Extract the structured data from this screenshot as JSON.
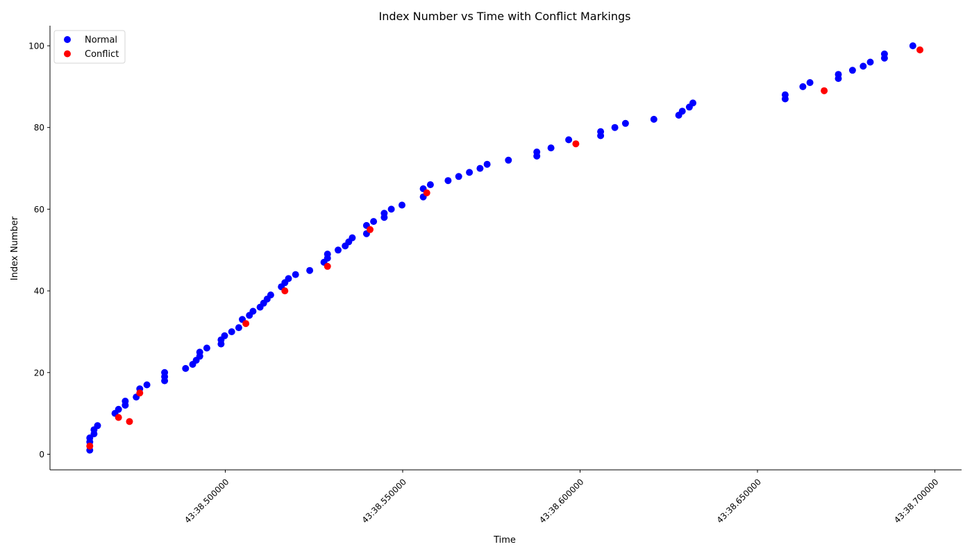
{
  "chart_data": {
    "type": "scatter",
    "title": "Index Number vs Time with Conflict Markings",
    "xlabel": "Time",
    "ylabel": "Index Number",
    "x_unit": "seconds within 43:38 (mm:ss)",
    "xlim": [
      38.4809,
      38.7081
    ],
    "ylim": [
      -4,
      105
    ],
    "xticks": [
      {
        "value": 38.5,
        "label": "43:38.500000"
      },
      {
        "value": 38.55,
        "label": "43:38.550000"
      },
      {
        "value": 38.6,
        "label": "43:38.600000"
      },
      {
        "value": 38.65,
        "label": "43:38.650000"
      },
      {
        "value": 38.7,
        "label": "43:38.700000"
      }
    ],
    "yticks": [
      {
        "value": 0,
        "label": "0"
      },
      {
        "value": 20,
        "label": "20"
      },
      {
        "value": 40,
        "label": "40"
      },
      {
        "value": 60,
        "label": "60"
      },
      {
        "value": 80,
        "label": "80"
      },
      {
        "value": 100,
        "label": "100"
      }
    ],
    "grid": false,
    "legend_position": "top-left",
    "series": [
      {
        "name": "Normal",
        "color": "#0000ff",
        "points": [
          [
            38.4618,
            1
          ],
          [
            38.4618,
            3
          ],
          [
            38.4618,
            4
          ],
          [
            38.463,
            5
          ],
          [
            38.463,
            6
          ],
          [
            38.464,
            7
          ],
          [
            38.4689,
            10
          ],
          [
            38.4699,
            11
          ],
          [
            38.4718,
            12
          ],
          [
            38.4718,
            13
          ],
          [
            38.4749,
            14
          ],
          [
            38.4759,
            16
          ],
          [
            38.4779,
            17
          ],
          [
            38.4829,
            18
          ],
          [
            38.4829,
            19
          ],
          [
            38.4829,
            20
          ],
          [
            38.4888,
            21
          ],
          [
            38.4908,
            22
          ],
          [
            38.4918,
            23
          ],
          [
            38.4928,
            24
          ],
          [
            38.4928,
            25
          ],
          [
            38.4948,
            26
          ],
          [
            38.4988,
            27
          ],
          [
            38.4988,
            28
          ],
          [
            38.4998,
            29
          ],
          [
            38.5018,
            30
          ],
          [
            38.5038,
            31
          ],
          [
            38.5048,
            33
          ],
          [
            38.5068,
            34
          ],
          [
            38.5078,
            35
          ],
          [
            38.5098,
            36
          ],
          [
            38.5108,
            37
          ],
          [
            38.5118,
            38
          ],
          [
            38.5128,
            39
          ],
          [
            38.5158,
            41
          ],
          [
            38.5168,
            42
          ],
          [
            38.5178,
            43
          ],
          [
            38.5198,
            44
          ],
          [
            38.5238,
            45
          ],
          [
            38.5278,
            47
          ],
          [
            38.5288,
            48
          ],
          [
            38.5288,
            49
          ],
          [
            38.5318,
            50
          ],
          [
            38.5338,
            51
          ],
          [
            38.5348,
            52
          ],
          [
            38.5358,
            53
          ],
          [
            38.5398,
            54
          ],
          [
            38.5398,
            56
          ],
          [
            38.5418,
            57
          ],
          [
            38.5448,
            58
          ],
          [
            38.5448,
            59
          ],
          [
            38.5468,
            60
          ],
          [
            38.5498,
            61
          ],
          [
            38.5558,
            63
          ],
          [
            38.5558,
            65
          ],
          [
            38.5578,
            66
          ],
          [
            38.5628,
            67
          ],
          [
            38.5658,
            68
          ],
          [
            38.5688,
            69
          ],
          [
            38.5718,
            70
          ],
          [
            38.5738,
            71
          ],
          [
            38.5798,
            72
          ],
          [
            38.5878,
            73
          ],
          [
            38.5878,
            74
          ],
          [
            38.5918,
            75
          ],
          [
            38.5968,
            77
          ],
          [
            38.6058,
            78
          ],
          [
            38.6058,
            79
          ],
          [
            38.6098,
            80
          ],
          [
            38.6128,
            81
          ],
          [
            38.6208,
            82
          ],
          [
            38.6278,
            83
          ],
          [
            38.6288,
            84
          ],
          [
            38.6308,
            85
          ],
          [
            38.6318,
            86
          ],
          [
            38.6578,
            87
          ],
          [
            38.6578,
            88
          ],
          [
            38.6628,
            90
          ],
          [
            38.6648,
            91
          ],
          [
            38.6728,
            92
          ],
          [
            38.6728,
            93
          ],
          [
            38.6768,
            94
          ],
          [
            38.6798,
            95
          ],
          [
            38.6818,
            96
          ],
          [
            38.6858,
            97
          ],
          [
            38.6858,
            98
          ],
          [
            38.6938,
            100
          ]
        ]
      },
      {
        "name": "Conflict",
        "color": "#ff0000",
        "points": [
          [
            38.4618,
            2
          ],
          [
            38.4699,
            9
          ],
          [
            38.473,
            8
          ],
          [
            38.4759,
            15
          ],
          [
            38.5058,
            32
          ],
          [
            38.5168,
            40
          ],
          [
            38.5288,
            46
          ],
          [
            38.5408,
            55
          ],
          [
            38.5568,
            64
          ],
          [
            38.5988,
            76
          ],
          [
            38.6688,
            89
          ],
          [
            38.6958,
            99
          ]
        ]
      }
    ]
  }
}
